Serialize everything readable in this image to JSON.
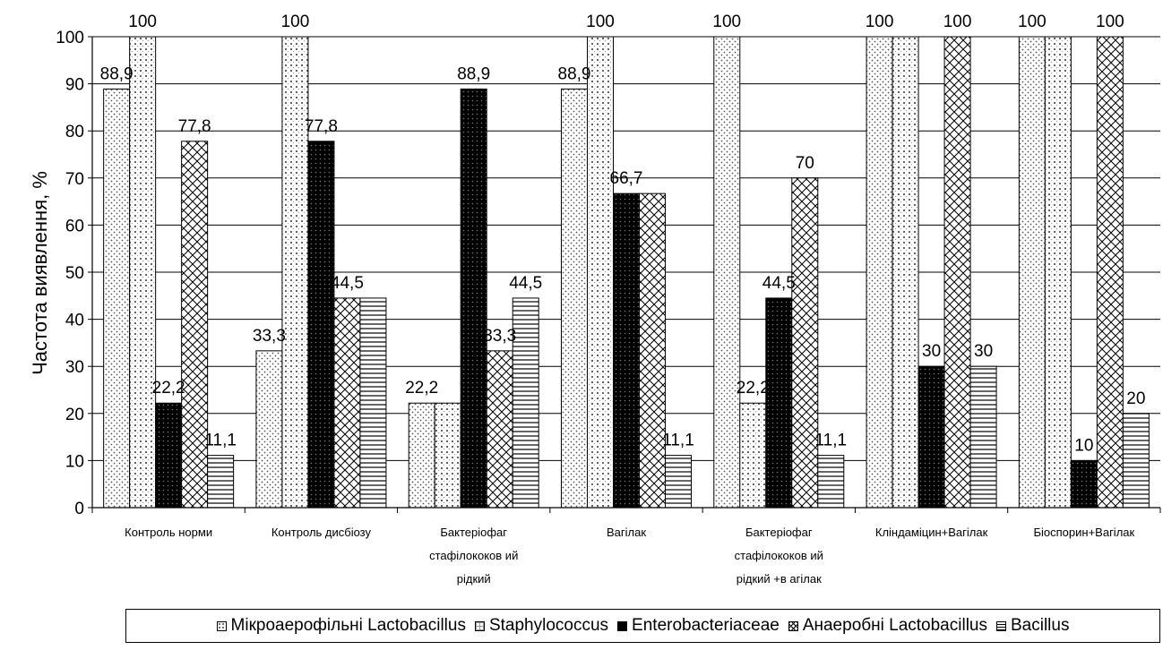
{
  "chart_data": {
    "type": "bar",
    "ylabel": "Частота виявлення, %",
    "ylim": [
      0,
      100
    ],
    "yticks": [
      0,
      10,
      20,
      30,
      40,
      50,
      60,
      70,
      80,
      90,
      100
    ],
    "grid": "horizontal",
    "legend_position": "bottom",
    "categories": [
      [
        "Контроль норми"
      ],
      [
        "Контроль дисбіозу"
      ],
      [
        "Бактеріофаг",
        "стафілококов ий",
        "рідкий"
      ],
      [
        "Вагілак"
      ],
      [
        "Бактеріофаг",
        "стафілококов ий",
        "рідкий +в агілак"
      ],
      [
        "Кліндаміцин+Вагілак"
      ],
      [
        "Біоспорин+Вагілак"
      ]
    ],
    "series": [
      {
        "name": "Мікроаерофільні Lactobacillus",
        "pattern": "dots",
        "values": [
          88.9,
          33.3,
          22.2,
          88.9,
          100,
          100,
          100
        ],
        "labels": [
          "88,9",
          "33,3",
          "22,2",
          "88,9",
          "100",
          "100",
          "100"
        ]
      },
      {
        "name": "Staphylococcus",
        "pattern": "grid",
        "values": [
          100,
          100,
          22.2,
          100,
          22.2,
          100,
          100
        ],
        "labels": [
          "100",
          "100",
          "",
          "100",
          "22,2",
          "",
          ""
        ]
      },
      {
        "name": "Enterobacteriaceae",
        "pattern": "dark",
        "values": [
          22.2,
          77.8,
          88.9,
          66.7,
          44.5,
          30,
          10
        ],
        "labels": [
          "22,2",
          "77,8",
          "88,9",
          "66,7",
          "44,5",
          "30",
          "10"
        ]
      },
      {
        "name": "Анаеробні Lactobacillus",
        "pattern": "cross",
        "values": [
          77.8,
          44.5,
          33.3,
          66.7,
          70,
          100,
          100
        ],
        "labels": [
          "77,8",
          "44,5",
          "33,3",
          "",
          "70",
          "100",
          "100"
        ]
      },
      {
        "name": "Bacillus",
        "pattern": "hlines",
        "values": [
          11.1,
          44.5,
          44.5,
          11.1,
          11.1,
          30,
          20
        ],
        "labels": [
          "11,1",
          "",
          "44,5",
          "11,1",
          "11,1",
          "30",
          "20"
        ]
      }
    ]
  }
}
